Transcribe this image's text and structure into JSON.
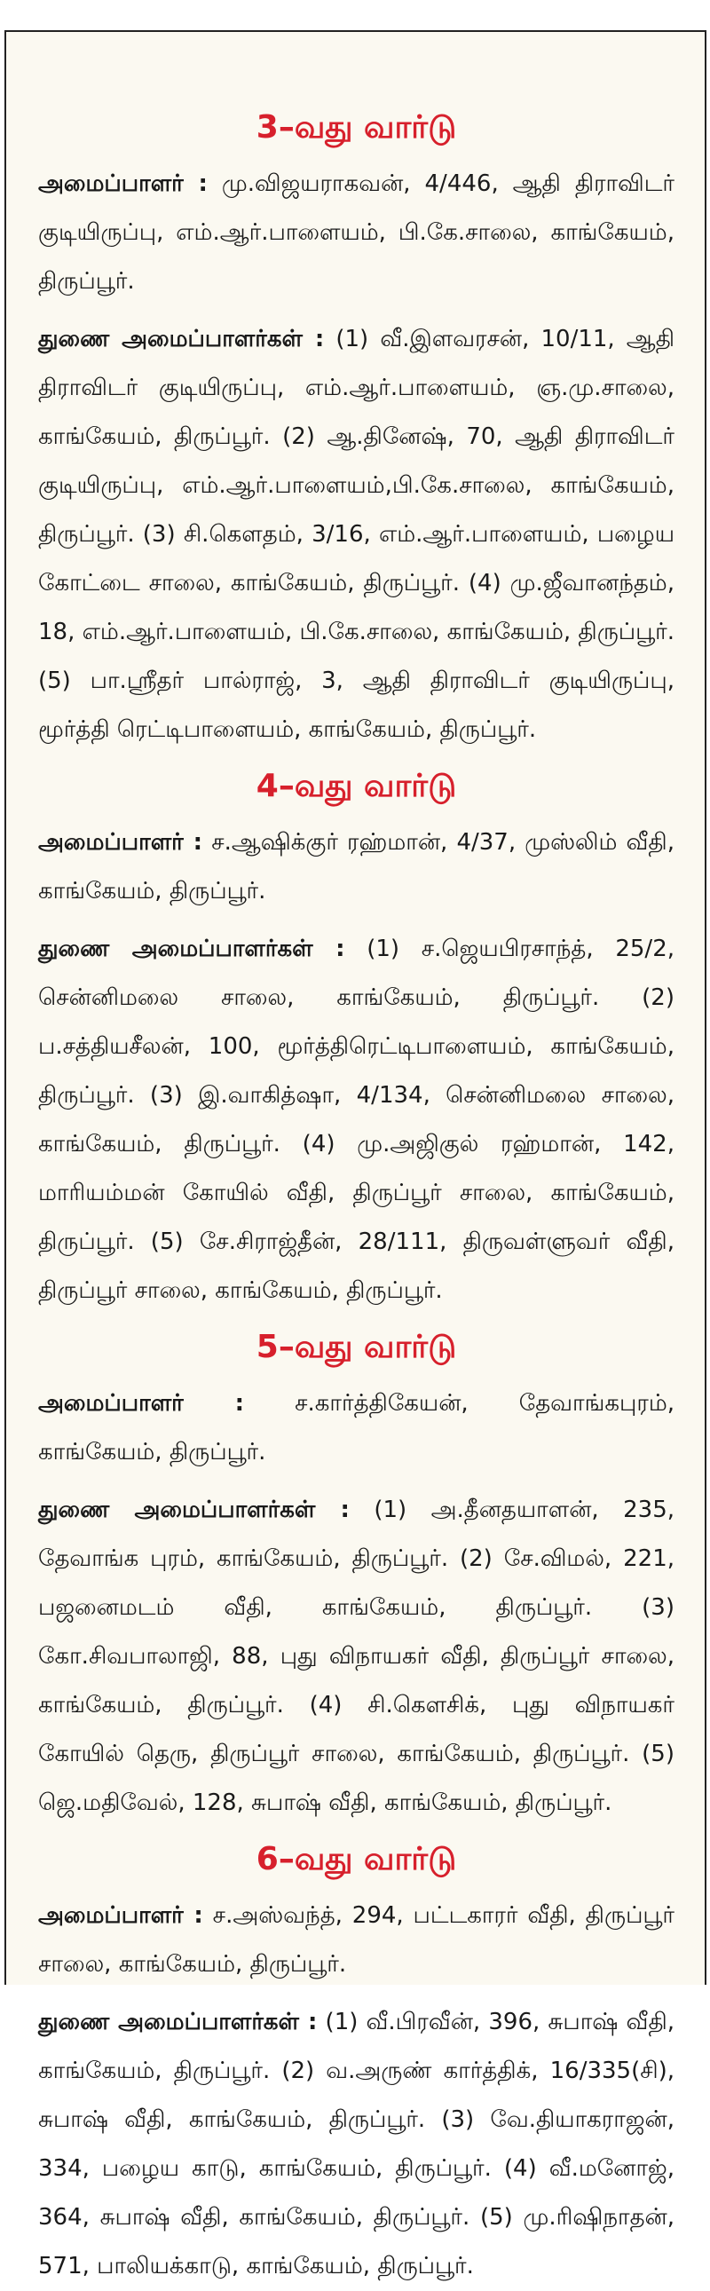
{
  "sections": [
    {
      "title": "3–வது வார்டு",
      "organizer_label": "அமைப்பாளர் :",
      "organizer": "மு.விஜயராகவன், 4/446, ஆதி திராவிடர் குடியிருப்பு, எம்.ஆர்.பாளையம், பி.கே.சாலை, காங்கேயம், திருப்பூர்.",
      "deputies_label": "துணை அமைப்பாளர்கள் :",
      "deputies": "(1) வீ.இளவரசன், 10/11, ஆதி திராவிடர் குடியிருப்பு, எம்.ஆர்.பாளையம், ஞ.மு.சாலை, காங்கேயம், திருப்பூர். (2) ஆ.தினேஷ், 70, ஆதி திராவிடர் குடியிருப்பு, எம்.ஆர்.பாளையம்,பி.கே.சாலை, காங்கேயம், திருப்பூர். (3) சி.கௌதம், 3/16, எம்.ஆர்.பாளையம், பழைய கோட்டை சாலை, காங்கேயம், திருப்பூர். (4) மு.ஜீவானந்தம், 18, எம்.ஆர்.பாளையம், பி.கே.சாலை, காங்கேயம், திருப்பூர். (5) பா.ஸ்ரீதர் பால்ராஜ், 3, ஆதி திராவிடர் குடியிருப்பு, மூர்த்தி ரெட்டிபாளையம், காங்கேயம், திருப்பூர்."
    },
    {
      "title": "4–வது வார்டு",
      "organizer_label": "அமைப்பாளர் :",
      "organizer": "ச.ஆஷிக்குர் ரஹ்மான், 4/37, முஸ்லிம் வீதி, காங்கேயம், திருப்பூர்.",
      "deputies_label": "துணை அமைப்பாளர்கள் :",
      "deputies": "(1) ச.ஜெயபிரசாந்த், 25/2, சென்னிமலை சாலை, காங்கேயம், திருப்பூர். (2) ப.சத்தியசீலன், 100, மூர்த்திரெட்டிபாளையம், காங்கேயம், திருப்பூர். (3) இ.வாகித்ஷா, 4/134, சென்னிமலை சாலை, காங்கேயம், திருப்பூர். (4) மு.அஜிகுல் ரஹ்மான், 142, மாரியம்மன் கோயில் வீதி, திருப்பூர் சாலை, காங்கேயம், திருப்பூர். (5) சே.சிராஜ்தீன், 28/111, திருவள்ளுவர் வீதி, திருப்பூர் சாலை, காங்கேயம், திருப்பூர்."
    },
    {
      "title": "5–வது வார்டு",
      "organizer_label": "அமைப்பாளர் :",
      "organizer": "ச.கார்த்திகேயன், தேவாங்கபுரம், காங்கேயம், திருப்பூர்.",
      "deputies_label": "துணை அமைப்பாளர்கள் :",
      "deputies": "(1) அ.தீனதயாளன், 235, தேவாங்க புரம், காங்கேயம், திருப்பூர். (2) சே.விமல், 221, பஜனைமடம் வீதி, காங்கேயம், திருப்பூர். (3) கோ.சிவபாலாஜி, 88, புது விநாயகர் வீதி, திருப்பூர் சாலை, காங்கேயம், திருப்பூர். (4) சி.கௌசிக், புது விநாயகர் கோயில் தெரு, திருப்பூர் சாலை, காங்கேயம், திருப்பூர். (5) ஜெ.மதிவேல், 128, சுபாஷ் வீதி, காங்கேயம், திருப்பூர்."
    },
    {
      "title": "6–வது வார்டு",
      "organizer_label": "அமைப்பாளர் :",
      "organizer": "ச.அஸ்வந்த், 294, பட்டகாரர் வீதி, திருப்பூர் சாலை, காங்கேயம், திருப்பூர்.",
      "deputies_label": "துணை அமைப்பாளர்கள் :",
      "deputies": "(1) வீ.பிரவீன், 396, சுபாஷ் வீதி, காங்கேயம், திருப்பூர். (2) வ.அருண் கார்த்திக், 16/335(சி), சுபாஷ் வீதி, காங்கேயம், திருப்பூர். (3) வே.தியாகராஜன், 334, பழைய காடு, காங்கேயம், திருப்பூர். (4) வீ.மனோஜ், 364, சுபாஷ் வீதி, காங்கேயம், திருப்பூர். (5) மு.ரிஷிநாதன், 571, பாலியக்காடு, காங்கேயம், திருப்பூர்."
    }
  ],
  "colors": {
    "heading": "#d7202c",
    "background": "#fbf9f1",
    "text": "#1a1a1a"
  }
}
